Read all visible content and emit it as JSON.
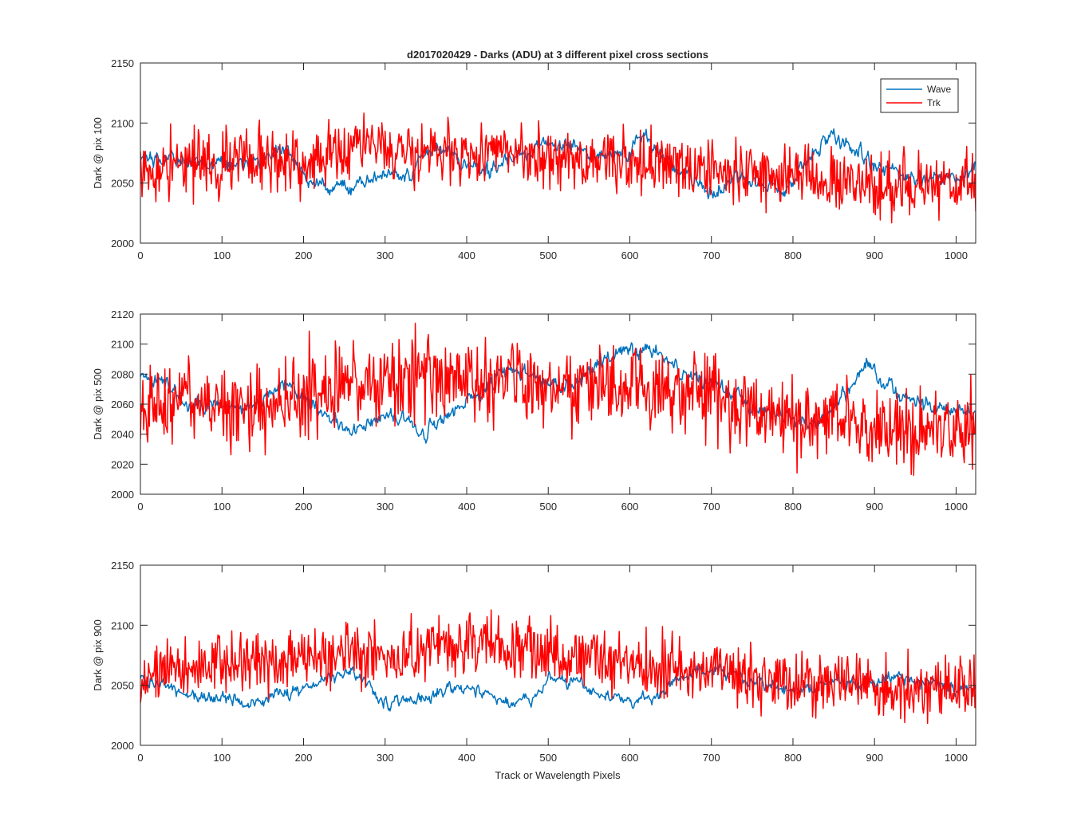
{
  "figure": {
    "title": "d2017020429 - Darks (ADU) at 3 different pixel cross sections",
    "xlabel": "Track or Wavelength Pixels"
  },
  "legend": {
    "placement": "top-right",
    "entries": [
      {
        "name": "Wave",
        "color": "#0072bd"
      },
      {
        "name": "Trk",
        "color": "#ff0000"
      }
    ]
  },
  "chart_data": [
    {
      "type": "line",
      "ylabel": "Dark @ pix 100",
      "xlim": [
        0,
        1024
      ],
      "ylim": [
        2000,
        2150
      ],
      "xticks": [
        0,
        100,
        200,
        300,
        400,
        500,
        600,
        700,
        800,
        900,
        1000
      ],
      "yticks": [
        2000,
        2050,
        2100,
        2150
      ],
      "grid": false,
      "noise": {
        "wave": 6,
        "trk": 13
      },
      "series": [
        {
          "name": "Wave",
          "color": "#0072bd",
          "trend_x": [
            0,
            30,
            60,
            90,
            120,
            150,
            180,
            200,
            230,
            260,
            300,
            330,
            350,
            380,
            400,
            430,
            450,
            480,
            500,
            530,
            560,
            600,
            620,
            650,
            680,
            700,
            730,
            760,
            790,
            820,
            835,
            850,
            870,
            900,
            930,
            960,
            1000,
            1024
          ],
          "trend_y": [
            2068,
            2070,
            2068,
            2067,
            2066,
            2067,
            2080,
            2055,
            2045,
            2048,
            2058,
            2055,
            2078,
            2075,
            2065,
            2060,
            2070,
            2078,
            2083,
            2080,
            2072,
            2075,
            2088,
            2065,
            2052,
            2038,
            2055,
            2050,
            2042,
            2068,
            2085,
            2090,
            2080,
            2065,
            2058,
            2052,
            2052,
            2065
          ]
        },
        {
          "name": "Trk",
          "color": "#ff0000",
          "trend_x": [
            0,
            50,
            100,
            150,
            200,
            240,
            260,
            300,
            350,
            400,
            450,
            500,
            550,
            600,
            650,
            700,
            750,
            800,
            850,
            900,
            950,
            1000,
            1024
          ],
          "trend_y": [
            2065,
            2065,
            2068,
            2070,
            2065,
            2075,
            2085,
            2080,
            2078,
            2075,
            2078,
            2070,
            2070,
            2068,
            2065,
            2063,
            2058,
            2057,
            2052,
            2048,
            2048,
            2050,
            2052
          ]
        }
      ]
    },
    {
      "type": "line",
      "ylabel": "Dark @ pix 500",
      "xlim": [
        0,
        1024
      ],
      "ylim": [
        2000,
        2120
      ],
      "xticks": [
        0,
        100,
        200,
        300,
        400,
        500,
        600,
        700,
        800,
        900,
        1000
      ],
      "yticks": [
        2000,
        2020,
        2040,
        2060,
        2080,
        2100,
        2120
      ],
      "grid": false,
      "noise": {
        "wave": 5,
        "trk": 14
      },
      "series": [
        {
          "name": "Wave",
          "color": "#0072bd",
          "trend_x": [
            0,
            30,
            60,
            100,
            150,
            180,
            200,
            230,
            260,
            300,
            330,
            350,
            380,
            420,
            450,
            480,
            500,
            530,
            560,
            590,
            610,
            630,
            660,
            700,
            750,
            800,
            830,
            870,
            890,
            910,
            950,
            1000,
            1024
          ],
          "trend_y": [
            2078,
            2075,
            2058,
            2058,
            2062,
            2075,
            2065,
            2050,
            2042,
            2052,
            2050,
            2040,
            2055,
            2068,
            2083,
            2080,
            2075,
            2072,
            2085,
            2098,
            2095,
            2098,
            2082,
            2075,
            2058,
            2050,
            2048,
            2070,
            2090,
            2072,
            2062,
            2055,
            2052
          ]
        },
        {
          "name": "Trk",
          "color": "#ff0000",
          "trend_x": [
            0,
            50,
            100,
            150,
            200,
            250,
            300,
            350,
            400,
            450,
            500,
            550,
            600,
            650,
            700,
            750,
            800,
            850,
            900,
            950,
            1000,
            1024
          ],
          "trend_y": [
            2058,
            2062,
            2058,
            2062,
            2068,
            2070,
            2075,
            2078,
            2075,
            2078,
            2075,
            2072,
            2070,
            2068,
            2062,
            2055,
            2052,
            2048,
            2045,
            2045,
            2045,
            2048
          ]
        }
      ]
    },
    {
      "type": "line",
      "ylabel": "Dark @ pix 900",
      "xlim": [
        0,
        1024
      ],
      "ylim": [
        2000,
        2150
      ],
      "xticks": [
        0,
        100,
        200,
        300,
        400,
        500,
        600,
        700,
        800,
        900,
        1000
      ],
      "yticks": [
        2000,
        2050,
        2100,
        2150
      ],
      "grid": false,
      "noise": {
        "wave": 5,
        "trk": 13
      },
      "series": [
        {
          "name": "Wave",
          "color": "#0072bd",
          "trend_x": [
            0,
            20,
            60,
            100,
            140,
            170,
            200,
            230,
            260,
            290,
            310,
            340,
            360,
            380,
            420,
            450,
            480,
            500,
            530,
            560,
            600,
            630,
            650,
            680,
            720,
            760,
            800,
            850,
            900,
            930,
            960,
            1000,
            1024
          ],
          "trend_y": [
            2056,
            2052,
            2042,
            2040,
            2035,
            2042,
            2046,
            2055,
            2062,
            2038,
            2035,
            2038,
            2042,
            2048,
            2046,
            2035,
            2040,
            2056,
            2052,
            2045,
            2038,
            2040,
            2050,
            2062,
            2062,
            2052,
            2045,
            2052,
            2052,
            2058,
            2052,
            2048,
            2048
          ]
        },
        {
          "name": "Trk",
          "color": "#ff0000",
          "trend_x": [
            0,
            50,
            100,
            150,
            200,
            250,
            300,
            350,
            400,
            450,
            500,
            550,
            600,
            650,
            700,
            750,
            800,
            850,
            900,
            950,
            1000,
            1024
          ],
          "trend_y": [
            2060,
            2062,
            2068,
            2068,
            2072,
            2075,
            2075,
            2082,
            2082,
            2082,
            2080,
            2075,
            2070,
            2065,
            2060,
            2056,
            2052,
            2050,
            2048,
            2048,
            2048,
            2050
          ]
        }
      ]
    }
  ]
}
